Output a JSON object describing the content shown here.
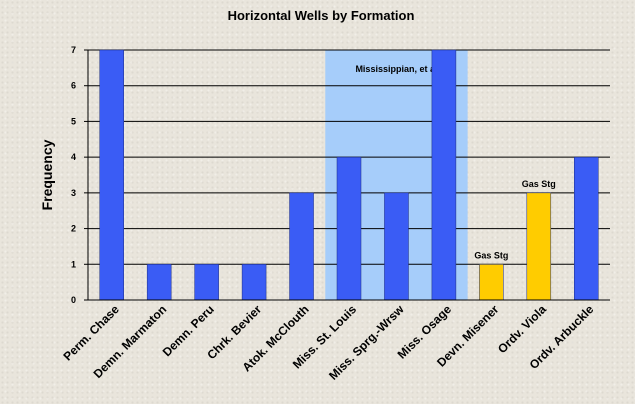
{
  "chart_data": {
    "type": "bar",
    "title": "Horizontal Wells by Formation",
    "xlabel": "",
    "ylabel": "Frequency",
    "ylim": [
      0,
      7
    ],
    "yticks": [
      0,
      1,
      2,
      3,
      4,
      5,
      6,
      7
    ],
    "grid": true,
    "categories": [
      "Perm. Chase",
      "Demn. Marmaton",
      "Demn. Peru",
      "Chrk. Bevier",
      "Atok. McClouth",
      "Miss. St. Louis",
      "Miss. Sprg.-Wrsw",
      "Miss. Osage",
      "Devn. Misener",
      "Ordv. Viola",
      "Ordv. Arbuckle"
    ],
    "values": [
      7,
      1,
      1,
      1,
      3,
      4,
      3,
      7,
      1,
      3,
      4
    ],
    "bar_colors": [
      "#3a5cf5",
      "#3a5cf5",
      "#3a5cf5",
      "#3a5cf5",
      "#3a5cf5",
      "#3a5cf5",
      "#3a5cf5",
      "#3a5cf5",
      "#ffcc00",
      "#ffcc00",
      "#3a5cf5"
    ],
    "highlight_region": {
      "label": "Mississippian, et al",
      "from_category": "Miss. St. Louis",
      "to_category": "Miss. Osage",
      "color": "#a6cdfa"
    },
    "annotations": [
      {
        "text": "Gas Stg",
        "category": "Devn. Misener",
        "value": 1
      },
      {
        "text": "Gas Stg",
        "category": "Ordv. Viola",
        "value": 3
      }
    ],
    "colors": {
      "primary": "#3a5cf5",
      "gas_storage": "#ffcc00",
      "grid": "#000000"
    }
  }
}
